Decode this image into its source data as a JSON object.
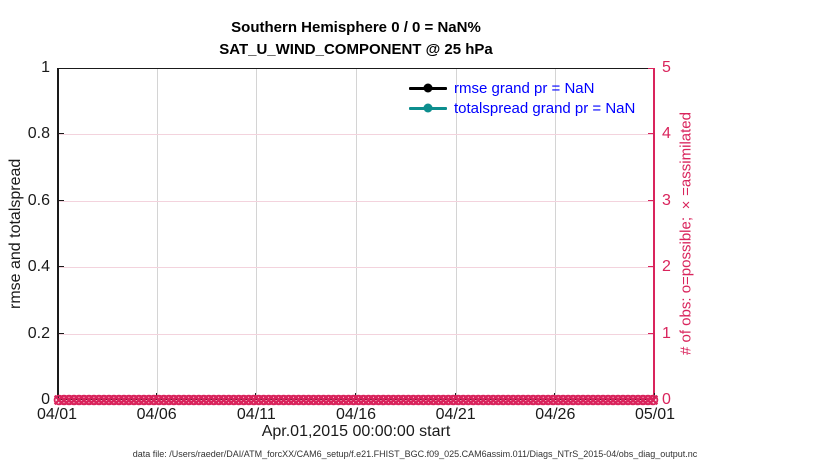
{
  "header": {
    "line1": "Southern Hemisphere 0 / 0 = NaN%",
    "line2": "SAT_U_WIND_COMPONENT @ 25 hPa"
  },
  "axes": {
    "left": {
      "label": "rmse and totalspread",
      "tick_labels": [
        "0",
        "0.2",
        "0.4",
        "0.6",
        "0.8",
        "1"
      ],
      "range": [
        0,
        1
      ]
    },
    "right": {
      "label": "# of obs: o=possible; ×=assimilated",
      "tick_labels": [
        "0",
        "1",
        "2",
        "3",
        "4",
        "5"
      ],
      "range": [
        0,
        5
      ]
    },
    "x": {
      "label": "Apr.01,2015 00:00:00 start",
      "tick_labels": [
        "04/01",
        "04/06",
        "04/11",
        "04/16",
        "04/21",
        "04/26",
        "05/01"
      ]
    }
  },
  "legend": {
    "items": [
      {
        "label": "rmse grand pr = NaN",
        "color": "#000000"
      },
      {
        "label": "totalspread grand pr = NaN",
        "color": "#0d8e8e"
      }
    ]
  },
  "footer": {
    "text": "data file: /Users/raeder/DAI/ATM_forcXX/CAM6_setup/f.e21.FHIST_BGC.f09_025.CAM6assim.011/Diags_NTrS_2015-04/obs_diag_output.nc"
  },
  "colors": {
    "pink": "#d9245c",
    "pink_grid": "#f3d3dd",
    "gray_grid": "#d4d4d4",
    "axis_dark": "#1a1a1a",
    "legend_text": "#0000ff",
    "teal": "#0d8e8e"
  },
  "chart_data": {
    "type": "line",
    "title": "Southern Hemisphere 0 / 0 = NaN%",
    "subtitle": "SAT_U_WIND_COMPONENT @ 25 hPa",
    "x_start": "Apr.01,2015 00:00:00",
    "x_ticks": [
      "04/01",
      "04/06",
      "04/11",
      "04/16",
      "04/21",
      "04/26",
      "05/01"
    ],
    "left_ylabel": "rmse and totalspread",
    "right_ylabel": "# of obs: o=possible; ×=assimilated",
    "left_ylim": [
      0,
      1
    ],
    "right_ylim": [
      0,
      5
    ],
    "grid": true,
    "legend_position": "inside top, center-right",
    "series": [
      {
        "name": "rmse",
        "axis": "left",
        "grand_pr": "NaN",
        "values_plotted": "none (all NaN)"
      },
      {
        "name": "totalspread",
        "axis": "left",
        "grand_pr": "NaN",
        "values_plotted": "none (all NaN)"
      },
      {
        "name": "obs possible (o markers)",
        "axis": "right",
        "n_points": 120,
        "constant_value": 0
      },
      {
        "name": "obs assimilated (× markers)",
        "axis": "right",
        "n_points": 120,
        "constant_value": 0
      }
    ]
  }
}
